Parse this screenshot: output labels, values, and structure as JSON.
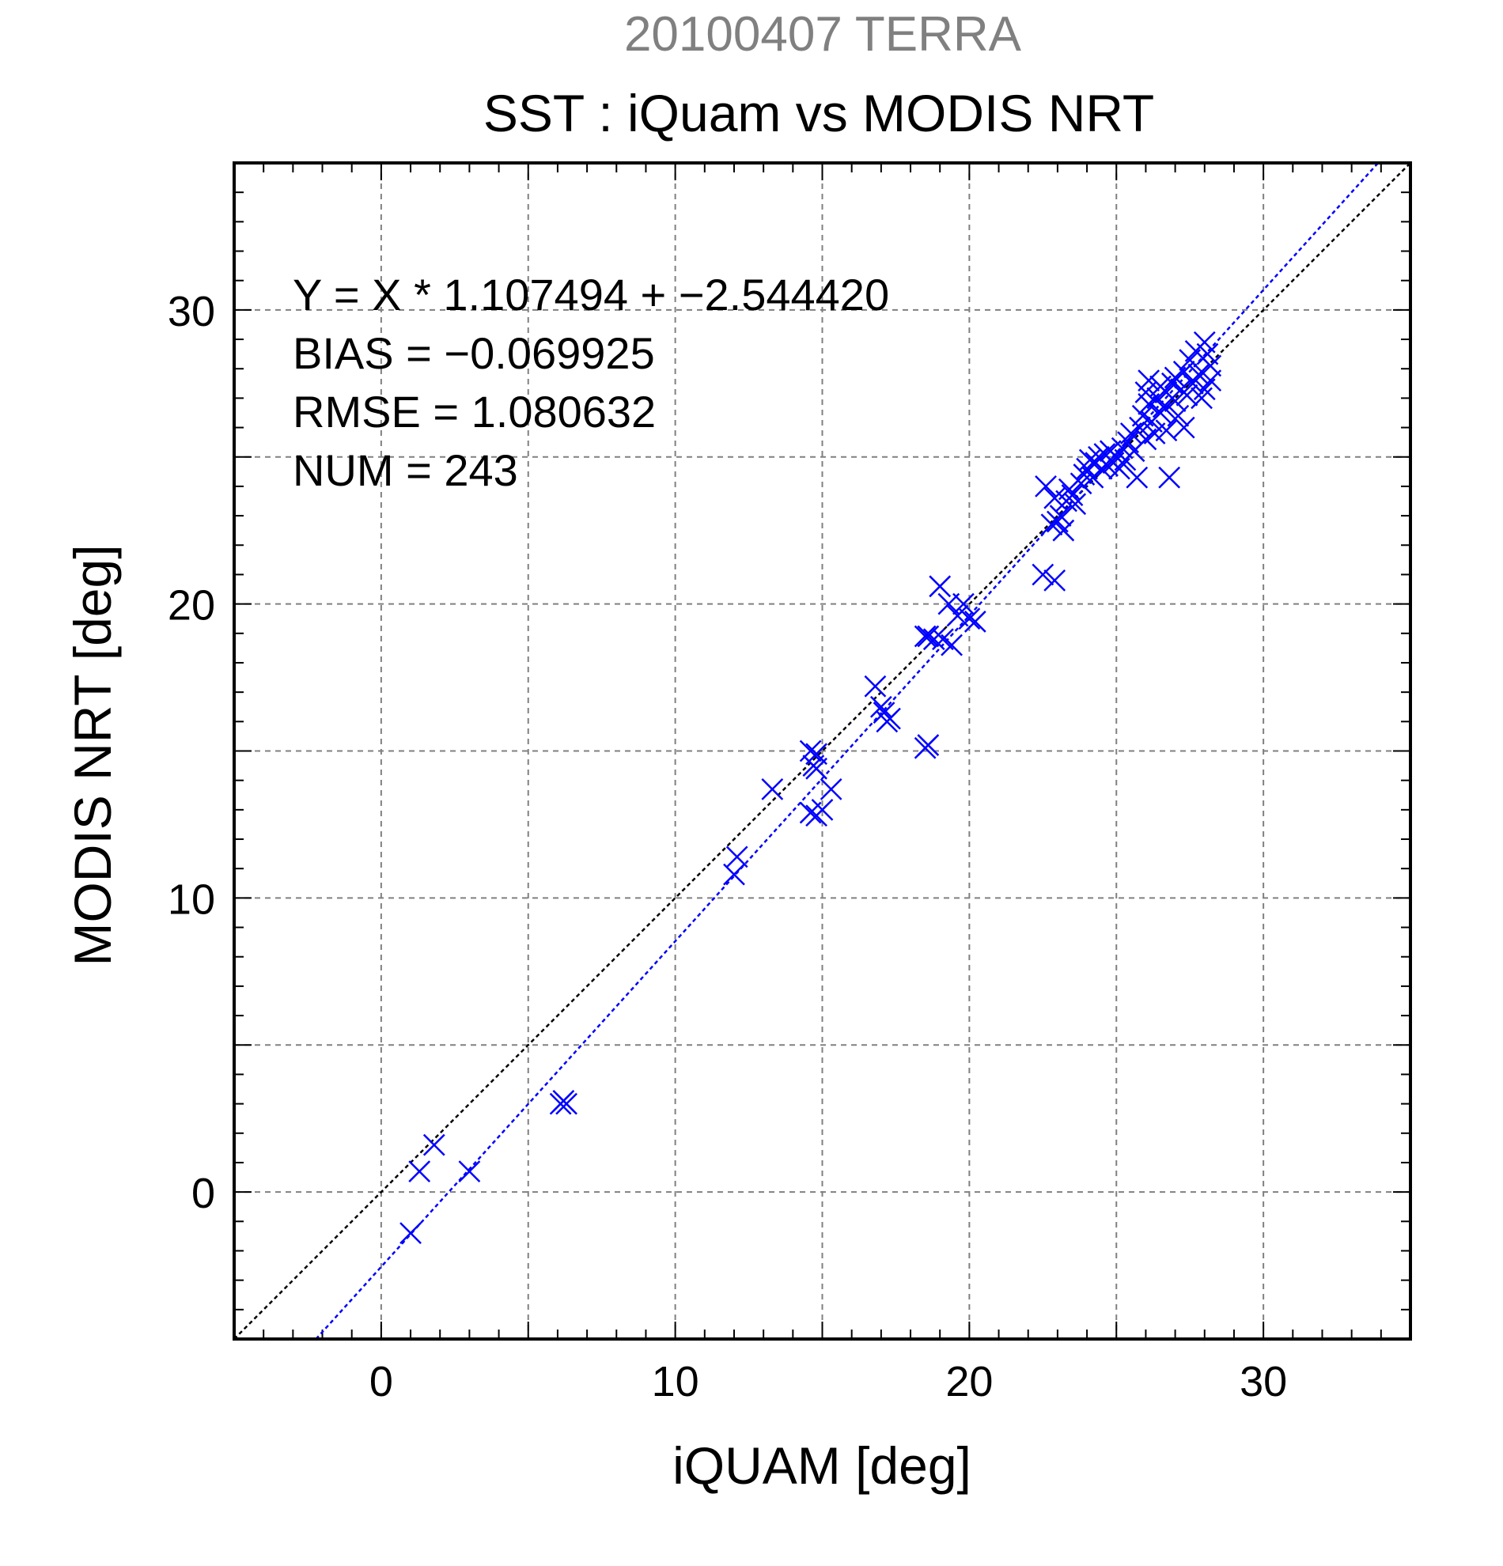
{
  "chart_data": {
    "type": "scatter",
    "title_top": "20100407 TERRA",
    "title": "SST : iQuam vs MODIS NRT",
    "xlabel": "iQUAM [deg]",
    "ylabel": "MODIS NRT [deg]",
    "xlim": [
      -5,
      35
    ],
    "ylim": [
      -5,
      35
    ],
    "x_ticks": [
      0,
      10,
      20,
      30
    ],
    "y_ticks": [
      0,
      10,
      20,
      30
    ],
    "x_ticks_labels": [
      "0",
      "10",
      "20",
      "30"
    ],
    "y_ticks_labels": [
      "0",
      "10",
      "20",
      "30"
    ],
    "grid": true,
    "annotations": [
      "Y = X * 1.107494 + −2.544420",
      "BIAS = −0.069925",
      "RMSE = 1.080632",
      "NUM = 243"
    ],
    "identity_line": {
      "slope": 1,
      "intercept": 0
    },
    "fit_line": {
      "slope": 1.107494,
      "intercept": -2.54442
    },
    "colors": {
      "points": "#0000ff",
      "fit_line": "#0000ff",
      "identity_line": "#000000",
      "title_top": "#808080",
      "grid": "#808080"
    },
    "series": [
      {
        "points": [
          [
            1.0,
            -1.4
          ],
          [
            1.3,
            0.7
          ],
          [
            1.8,
            1.6
          ],
          [
            3.0,
            0.7
          ],
          [
            6.1,
            3.0
          ],
          [
            6.2,
            3.1
          ],
          [
            6.3,
            3.0
          ],
          [
            12.0,
            10.8
          ],
          [
            12.1,
            11.4
          ],
          [
            13.3,
            13.7
          ],
          [
            14.6,
            15.0
          ],
          [
            14.7,
            14.5
          ],
          [
            14.8,
            14.4
          ],
          [
            14.8,
            14.9
          ],
          [
            14.6,
            12.9
          ],
          [
            14.8,
            12.8
          ],
          [
            15.0,
            13.0
          ],
          [
            15.3,
            13.7
          ],
          [
            16.8,
            17.2
          ],
          [
            17.0,
            16.5
          ],
          [
            17.1,
            16.3
          ],
          [
            17.2,
            16.0
          ],
          [
            17.3,
            16.1
          ],
          [
            18.5,
            15.1
          ],
          [
            18.6,
            15.2
          ],
          [
            18.5,
            18.9
          ],
          [
            18.6,
            18.9
          ],
          [
            18.8,
            18.8
          ],
          [
            19.1,
            18.8
          ],
          [
            19.0,
            20.6
          ],
          [
            19.3,
            20.0
          ],
          [
            19.4,
            18.6
          ],
          [
            19.6,
            19.6
          ],
          [
            19.8,
            20.0
          ],
          [
            20.0,
            19.5
          ],
          [
            20.2,
            19.4
          ],
          [
            22.5,
            21.0
          ],
          [
            22.9,
            20.8
          ],
          [
            22.6,
            24.0
          ],
          [
            22.8,
            22.7
          ],
          [
            22.9,
            23.6
          ],
          [
            23.0,
            22.8
          ],
          [
            23.1,
            23.0
          ],
          [
            23.2,
            22.5
          ],
          [
            23.3,
            23.5
          ],
          [
            23.4,
            23.9
          ],
          [
            23.5,
            23.7
          ],
          [
            23.6,
            23.4
          ],
          [
            23.8,
            24.1
          ],
          [
            23.9,
            24.4
          ],
          [
            24.0,
            24.6
          ],
          [
            24.1,
            24.9
          ],
          [
            24.2,
            24.3
          ],
          [
            24.3,
            24.8
          ],
          [
            24.4,
            25.0
          ],
          [
            24.5,
            24.6
          ],
          [
            24.6,
            25.1
          ],
          [
            24.7,
            24.7
          ],
          [
            24.8,
            25.2
          ],
          [
            24.9,
            24.8
          ],
          [
            25.0,
            25.0
          ],
          [
            25.1,
            24.6
          ],
          [
            25.2,
            25.3
          ],
          [
            25.3,
            24.9
          ],
          [
            25.4,
            25.5
          ],
          [
            25.5,
            25.8
          ],
          [
            25.6,
            25.2
          ],
          [
            25.7,
            24.3
          ],
          [
            25.8,
            26.0
          ],
          [
            25.9,
            26.4
          ],
          [
            26.0,
            27.2
          ],
          [
            26.0,
            25.6
          ],
          [
            26.1,
            26.8
          ],
          [
            26.1,
            27.6
          ],
          [
            26.2,
            26.2
          ],
          [
            26.3,
            25.8
          ],
          [
            26.4,
            27.0
          ],
          [
            26.5,
            27.4
          ],
          [
            26.5,
            26.5
          ],
          [
            26.6,
            26.7
          ],
          [
            26.7,
            27.2
          ],
          [
            26.7,
            25.9
          ],
          [
            26.8,
            24.3
          ],
          [
            26.9,
            27.5
          ],
          [
            27.0,
            26.9
          ],
          [
            27.0,
            27.7
          ],
          [
            27.1,
            26.4
          ],
          [
            27.2,
            27.3
          ],
          [
            27.3,
            26.0
          ],
          [
            27.3,
            27.9
          ],
          [
            27.4,
            27.1
          ],
          [
            27.5,
            28.3
          ],
          [
            27.6,
            27.5
          ],
          [
            27.7,
            28.6
          ],
          [
            27.8,
            27.8
          ],
          [
            27.9,
            27.0
          ],
          [
            28.0,
            28.9
          ],
          [
            28.0,
            27.3
          ],
          [
            28.1,
            28.5
          ],
          [
            28.2,
            27.6
          ],
          [
            28.2,
            28.1
          ]
        ]
      }
    ]
  }
}
